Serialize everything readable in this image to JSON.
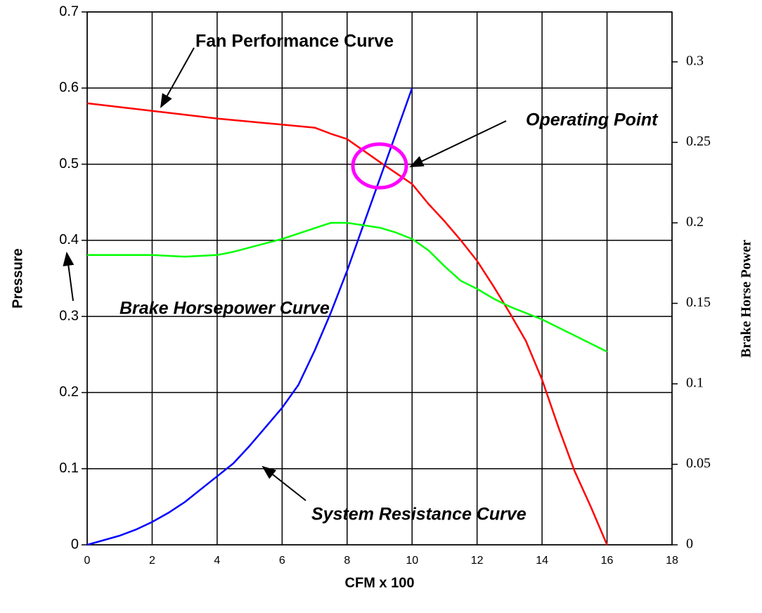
{
  "chart_data": {
    "type": "line",
    "xlabel": "CFM x 100",
    "ylabel": "Pressure",
    "y2label": "Brake Horse Power",
    "xlim": [
      0,
      18
    ],
    "xticks": [
      0,
      2,
      4,
      6,
      8,
      10,
      12,
      14,
      16,
      18
    ],
    "ylim": [
      0,
      0.7
    ],
    "yticks": [
      0,
      0.1,
      0.2,
      0.3,
      0.4,
      0.5,
      0.6,
      0.7
    ],
    "y2lim": [
      0,
      0.331
    ],
    "y2ticks": [
      0,
      0.05,
      0.1,
      0.15,
      0.2,
      0.25,
      0.3
    ],
    "grid": true,
    "series": [
      {
        "name": "Fan Performance Curve",
        "color": "#ff0000",
        "x": [
          0,
          2,
          4,
          6,
          7,
          7.5,
          8,
          9,
          10,
          10.5,
          11,
          11.5,
          12,
          12.5,
          13,
          13.5,
          14,
          14.5,
          15,
          15.5,
          16
        ],
        "values": [
          0.58,
          0.57,
          0.56,
          0.552,
          0.548,
          0.54,
          0.533,
          0.503,
          0.474,
          0.448,
          0.425,
          0.4,
          0.373,
          0.34,
          0.305,
          0.268,
          0.217,
          0.155,
          0.097,
          0.05,
          0
        ]
      },
      {
        "name": "System Resistance Curve",
        "color": "#0000ff",
        "x": [
          0,
          1,
          1.5,
          2,
          2.5,
          3,
          3.5,
          4,
          4.5,
          5,
          5.5,
          6,
          6.5,
          7,
          7.5,
          8,
          8.5,
          9,
          9.5,
          10
        ],
        "values": [
          0,
          0.012,
          0.02,
          0.03,
          0.042,
          0.056,
          0.073,
          0.09,
          0.107,
          0.13,
          0.155,
          0.18,
          0.21,
          0.255,
          0.305,
          0.36,
          0.42,
          0.48,
          0.54,
          0.6
        ]
      },
      {
        "name": "Brake Horsepower Curve",
        "color": "#00ff00",
        "axis": "y2",
        "x": [
          0,
          1,
          2,
          3,
          4,
          4.5,
          6,
          7.5,
          8,
          9,
          9.5,
          10,
          10.5,
          11,
          11.5,
          12,
          12.5,
          13,
          14,
          15,
          16
        ],
        "values": [
          0.18,
          0.18,
          0.18,
          0.179,
          0.18,
          0.182,
          0.19,
          0.2,
          0.2,
          0.197,
          0.194,
          0.19,
          0.183,
          0.173,
          0.164,
          0.159,
          0.153,
          0.148,
          0.14,
          0.13,
          0.12
        ]
      }
    ],
    "annotations": [
      "Operating Point"
    ]
  }
}
